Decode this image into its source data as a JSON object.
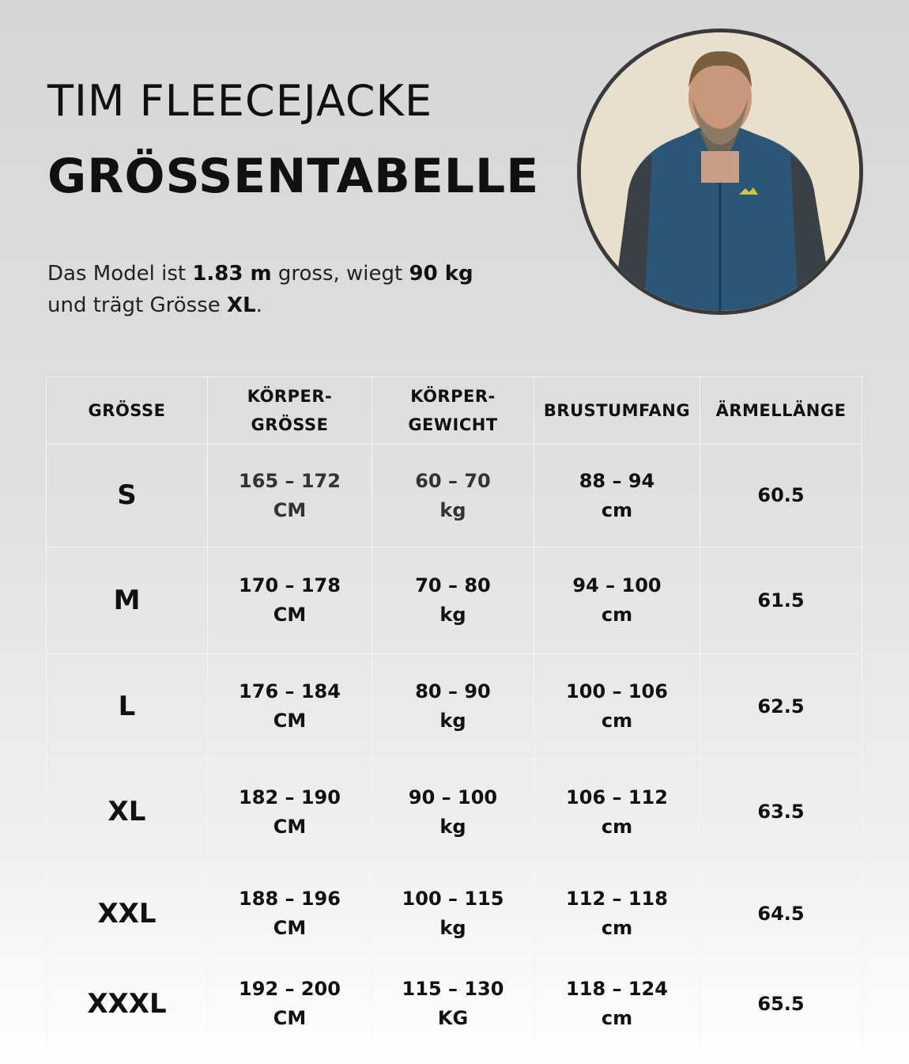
{
  "header": {
    "title_line1": "TIM FLEECEJACKE",
    "title_line2": "GRÖSSENTABELLE"
  },
  "description": {
    "p1": "Das Model ist ",
    "height": "1.83 m",
    "p2": " gross, wiegt ",
    "weight": "90 kg",
    "p3": "und trägt Grösse ",
    "size": "XL",
    "p4": "."
  },
  "photo": {
    "subject": "model wearing blue fleece jacket",
    "jacket_color": "#2c5677",
    "accent_color": "#c9c93a"
  },
  "table": {
    "columns": [
      [
        "GRÖSSE"
      ],
      [
        "KÖRPER-",
        "GRÖSSE"
      ],
      [
        "KÖRPER-",
        "GEWICHT"
      ],
      [
        "BRUSTUMFANG"
      ],
      [
        "ÄRMELLÄNGE"
      ]
    ],
    "rows": [
      {
        "size": "S",
        "height": [
          "165 – 172",
          "CM"
        ],
        "weight": [
          "60 – 70",
          "kg"
        ],
        "chest": [
          "88 – 94",
          "cm"
        ],
        "sleeve": "60.5"
      },
      {
        "size": "M",
        "height": [
          "170 – 178",
          "CM"
        ],
        "weight": [
          "70 – 80",
          "kg"
        ],
        "chest": [
          "94 – 100",
          "cm"
        ],
        "sleeve": "61.5"
      },
      {
        "size": "L",
        "height": [
          "176 – 184",
          "CM"
        ],
        "weight": [
          "80 – 90",
          "kg"
        ],
        "chest": [
          "100 – 106",
          "cm"
        ],
        "sleeve": "62.5"
      },
      {
        "size": "XL",
        "height": [
          "182 – 190",
          "CM"
        ],
        "weight": [
          "90 – 100",
          "kg"
        ],
        "chest": [
          "106 – 112",
          "cm"
        ],
        "sleeve": "63.5"
      },
      {
        "size": "XXL",
        "height": [
          "188 – 196",
          "CM"
        ],
        "weight": [
          "100 – 115",
          "kg"
        ],
        "chest": [
          "112 – 118",
          "cm"
        ],
        "sleeve": "64.5"
      },
      {
        "size": "XXXL",
        "height": [
          "192 – 200",
          "CM"
        ],
        "weight": [
          "115 – 130",
          "KG"
        ],
        "chest": [
          "118 – 124",
          "cm"
        ],
        "sleeve": "65.5"
      }
    ]
  }
}
